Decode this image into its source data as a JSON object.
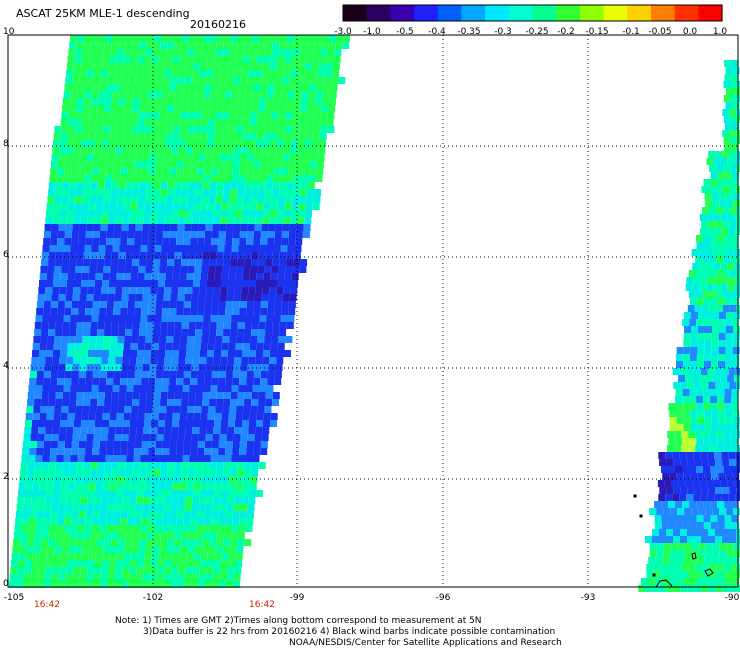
{
  "header": {
    "title": "ASCAT 25KM MLE-1 descending",
    "date": "20160216"
  },
  "colorbar": {
    "labels": [
      "-3.0",
      "-1.0",
      "-0.5",
      "-0.4",
      "-0.35",
      "-0.3",
      "-0.25",
      "-0.2",
      "-0.15",
      "-0.1",
      "-0.05",
      "0.0",
      "1.0"
    ],
    "colors": [
      "#000000",
      "#4b0082",
      "#3300cc",
      "#0033ff",
      "#0099ff",
      "#00ffee",
      "#33ff99",
      "#33ff33",
      "#99ff33",
      "#ffff00",
      "#ff9900",
      "#ff3300",
      "#ff0000"
    ]
  },
  "axes": {
    "y_ticks": [
      "10",
      "8",
      "6",
      "4",
      "2",
      "0"
    ],
    "x_ticks": [
      "-105",
      "-102",
      "-99",
      "-96",
      "-93",
      "-90"
    ],
    "times": [
      "16:42",
      "16:42"
    ]
  },
  "notes": {
    "line1": "Note: 1) Times are GMT 2)Times along bottom correspond to measurement at 5N",
    "line2": "3)Data buffer is 22 hrs from 20160216 4) Black wind barbs indicate possible contamination",
    "line3": "NOAA/NESDIS/Center for Satellite Applications and Research"
  },
  "swath_colors": {
    "deep": "#2a1ab8",
    "blue": "#1a33ee",
    "mid": "#2288ff",
    "cyan": "#00f0e0",
    "teal": "#00ffb0",
    "green": "#22ff55",
    "yellow": "#bbff33"
  }
}
